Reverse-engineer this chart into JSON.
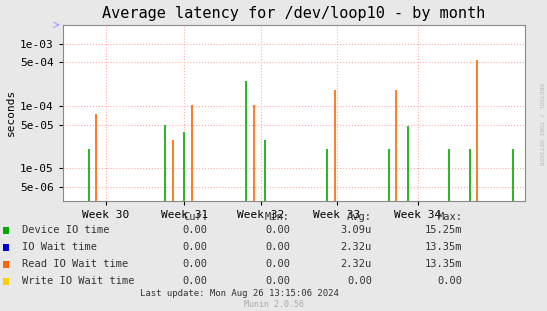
{
  "title": "Average latency for /dev/loop10 - by month",
  "ylabel": "seconds",
  "background_color": "#e8e8e8",
  "plot_bg_color": "#ffffff",
  "grid_color": "#ffaaaa",
  "title_fontsize": 11,
  "axis_fontsize": 8,
  "legend_fontsize": 7.5,
  "series": {
    "device_io": {
      "label": "Device IO time",
      "color": "#00aa00",
      "spikes": [
        [
          0.055,
          2e-05
        ],
        [
          0.215,
          5e-05
        ],
        [
          0.255,
          3.8e-05
        ],
        [
          0.385,
          0.00025
        ],
        [
          0.425,
          2.8e-05
        ],
        [
          0.555,
          2e-05
        ],
        [
          0.685,
          2e-05
        ],
        [
          0.725,
          4.8e-05
        ],
        [
          0.81,
          2e-05
        ],
        [
          0.855,
          2e-05
        ],
        [
          0.945,
          2e-05
        ]
      ]
    },
    "io_wait": {
      "label": "IO Wait time",
      "color": "#0000cc"
    },
    "read_io_wait": {
      "label": "Read IO Wait time",
      "color": "#ff6600",
      "spikes": [
        [
          0.07,
          7.5e-05
        ],
        [
          0.23,
          2.8e-05
        ],
        [
          0.27,
          0.000105
        ],
        [
          0.4,
          0.000105
        ],
        [
          0.57,
          0.00018
        ],
        [
          0.7,
          0.00018
        ],
        [
          0.87,
          0.00055
        ]
      ]
    },
    "write_io_wait": {
      "label": "Write IO Wait time",
      "color": "#ffcc00"
    }
  },
  "xtick_labels": [
    "Week 30",
    "Week 31",
    "Week 32",
    "Week 33",
    "Week 34"
  ],
  "xtick_positions": [
    0.09,
    0.255,
    0.415,
    0.575,
    0.745
  ],
  "xlim": [
    0.0,
    0.97
  ],
  "ylim_min": 3e-06,
  "ylim_max": 0.002,
  "yticks": [
    5e-06,
    1e-05,
    5e-05,
    0.0001,
    0.0005,
    0.001
  ],
  "ytick_labels": [
    "5e-06",
    "1e-05",
    "5e-05",
    "1e-04",
    "5e-04",
    "1e-03"
  ],
  "legend_table": {
    "headers": [
      "Cur:",
      "Min:",
      "Avg:",
      "Max:"
    ],
    "rows": [
      [
        "Device IO time",
        "0.00",
        "0.00",
        "3.09u",
        "15.25m"
      ],
      [
        "IO Wait time",
        "0.00",
        "0.00",
        "2.32u",
        "13.35m"
      ],
      [
        "Read IO Wait time",
        "0.00",
        "0.00",
        "2.32u",
        "13.35m"
      ],
      [
        "Write IO Wait time",
        "0.00",
        "0.00",
        "0.00",
        "0.00"
      ]
    ]
  },
  "footer": "Last update: Mon Aug 26 13:15:06 2024",
  "munin_text": "Munin 2.0.56",
  "watermark": "RRDTOOL / TOBI OETIKER"
}
